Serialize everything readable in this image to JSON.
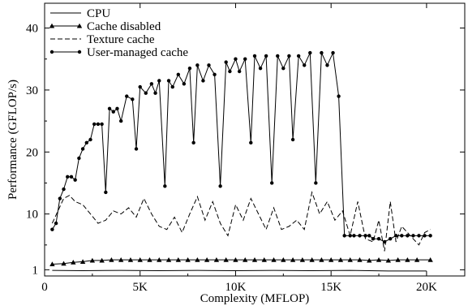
{
  "chart_data": {
    "type": "line",
    "xlabel": "Complexity (MFLOP)",
    "ylabel": "Performance (GFLOP/s)",
    "xlim": [
      0,
      22000
    ],
    "ylim": [
      0,
      44
    ],
    "x_ticks": [
      0,
      5000,
      10000,
      15000,
      20000
    ],
    "x_tick_labels": [
      "0",
      "5K",
      "10K",
      "15K",
      "20K"
    ],
    "y_ticks": [
      1,
      10,
      20,
      30,
      40
    ],
    "y_tick_labels": [
      "1",
      "10",
      "20",
      "30",
      "40"
    ],
    "grid": false,
    "legend_position": "top-left",
    "series": [
      {
        "name": "CPU",
        "style": "solid",
        "marker": "none",
        "x": [
          400,
          2000,
          4000,
          6000,
          8000,
          10000,
          12000,
          14000,
          16000,
          18000,
          20000
        ],
        "y": [
          0.9,
          0.85,
          0.9,
          0.85,
          0.9,
          0.85,
          0.9,
          0.85,
          0.9,
          0.8,
          0.8
        ]
      },
      {
        "name": "Cache disabled",
        "style": "solid",
        "marker": "triangle",
        "x": [
          400,
          1000,
          1500,
          2000,
          2500,
          3000,
          3500,
          4000,
          4500,
          5000,
          5500,
          6000,
          6500,
          7000,
          7500,
          8000,
          8500,
          9000,
          9500,
          10000,
          10500,
          11000,
          11500,
          12000,
          12500,
          13000,
          13500,
          14000,
          14500,
          15000,
          15500,
          16000,
          16500,
          17000,
          17500,
          18000,
          18500,
          19000,
          19500,
          20200
        ],
        "y": [
          1.9,
          2.0,
          2.2,
          2.3,
          2.5,
          2.5,
          2.6,
          2.6,
          2.6,
          2.6,
          2.6,
          2.6,
          2.6,
          2.6,
          2.6,
          2.6,
          2.6,
          2.6,
          2.6,
          2.6,
          2.6,
          2.6,
          2.6,
          2.6,
          2.6,
          2.6,
          2.6,
          2.6,
          2.6,
          2.6,
          2.6,
          2.6,
          2.6,
          2.5,
          2.6,
          2.5,
          2.6,
          2.6,
          2.6,
          2.6
        ]
      },
      {
        "name": "Texture cache",
        "style": "dashed",
        "marker": "none",
        "x": [
          400,
          700,
          1000,
          1300,
          1600,
          2000,
          2400,
          2800,
          3200,
          3600,
          4000,
          4400,
          4800,
          5200,
          5600,
          6000,
          6400,
          6800,
          7200,
          7600,
          8000,
          8400,
          8800,
          9200,
          9600,
          10000,
          10400,
          10800,
          11200,
          11600,
          12000,
          12400,
          12800,
          13200,
          13600,
          14000,
          14400,
          14800,
          15200,
          15600,
          16000,
          16400,
          16800,
          17200,
          17500,
          17800,
          18100,
          18400,
          18700,
          19000,
          19300,
          19600,
          19900,
          20200
        ],
        "y": [
          8.5,
          10.5,
          12.5,
          13.0,
          12.0,
          11.5,
          10.0,
          8.5,
          9.0,
          10.5,
          10.0,
          11.0,
          9.5,
          12.5,
          10.0,
          8.0,
          7.5,
          9.5,
          7.0,
          10.0,
          12.8,
          9.0,
          12.0,
          8.5,
          6.5,
          11.5,
          9.0,
          12.5,
          10.0,
          7.5,
          11.0,
          7.5,
          8.0,
          9.0,
          7.5,
          13.5,
          10.0,
          12.0,
          9.0,
          10.5,
          6.5,
          12.0,
          6.0,
          5.5,
          9.0,
          4.0,
          12.0,
          5.5,
          8.0,
          7.0,
          6.0,
          5.0,
          7.0,
          7.5
        ]
      },
      {
        "name": "User-managed cache",
        "style": "solid",
        "marker": "circle",
        "x": [
          400,
          600,
          800,
          1000,
          1200,
          1400,
          1600,
          1800,
          2000,
          2200,
          2400,
          2600,
          2800,
          3000,
          3200,
          3400,
          3600,
          3800,
          4000,
          4300,
          4600,
          4800,
          5000,
          5300,
          5600,
          5800,
          6000,
          6300,
          6500,
          6700,
          7000,
          7300,
          7600,
          7800,
          8000,
          8300,
          8600,
          8900,
          9200,
          9500,
          9700,
          10000,
          10200,
          10500,
          10800,
          11000,
          11300,
          11600,
          11900,
          12200,
          12500,
          12800,
          13000,
          13300,
          13600,
          13900,
          14200,
          14500,
          14800,
          15100,
          15400,
          15700,
          16000,
          16200,
          16500,
          16800,
          17000,
          17200,
          17500,
          17800,
          18100,
          18400,
          18700,
          19000,
          19300,
          19600,
          19900,
          20200
        ],
        "y": [
          7.5,
          8.5,
          12.5,
          14.0,
          16.0,
          16.0,
          15.5,
          19.0,
          20.5,
          21.5,
          22.0,
          24.5,
          24.5,
          24.5,
          13.5,
          27.0,
          26.5,
          27.0,
          25.0,
          29.0,
          28.5,
          20.5,
          30.5,
          29.5,
          31.0,
          29.5,
          31.5,
          14.5,
          31.5,
          30.5,
          32.5,
          31.0,
          33.5,
          21.5,
          34.0,
          31.5,
          34.0,
          32.5,
          14.5,
          34.5,
          33.0,
          35.0,
          33.0,
          35.0,
          21.5,
          35.5,
          33.5,
          35.5,
          15.0,
          35.5,
          33.5,
          35.5,
          22.0,
          35.5,
          34.0,
          36.0,
          15.0,
          36.0,
          34.0,
          36.0,
          29.0,
          6.5,
          6.5,
          6.5,
          6.5,
          6.5,
          6.5,
          6.0,
          6.0,
          5.5,
          6.0,
          6.5,
          6.5,
          6.5,
          6.5,
          6.5,
          6.5,
          6.5
        ]
      }
    ]
  }
}
